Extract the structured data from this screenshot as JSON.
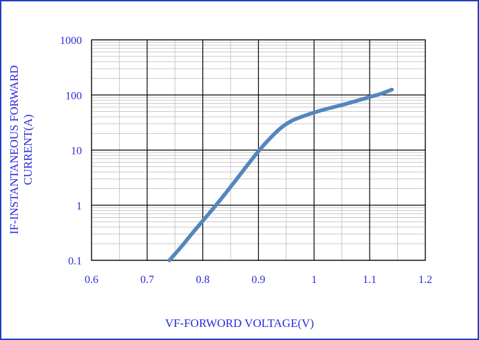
{
  "chart_data": {
    "type": "line",
    "title": "",
    "xlabel": "VF-FORWORD VOLTAGE(V)",
    "ylabel_lines": [
      "IF-INSTANTANEOUS FORWARD",
      "CURRENT(A)"
    ],
    "xlim": [
      0.6,
      1.2
    ],
    "ylim": [
      0.1,
      1000
    ],
    "y_scale": "log",
    "grid": true,
    "legend": "none",
    "x_ticks": [
      "0.6",
      "0.7",
      "0.8",
      "0.9",
      "1",
      "1.1",
      "1.2"
    ],
    "y_ticks": [
      "0.1",
      "1",
      "10",
      "100",
      "1000"
    ],
    "series": [
      {
        "color": "#5585bd",
        "x": [
          0.74,
          0.76,
          0.78,
          0.8,
          0.82,
          0.84,
          0.86,
          0.88,
          0.9,
          0.92,
          0.94,
          0.96,
          0.98,
          1.0,
          1.02,
          1.04,
          1.06,
          1.08,
          1.1,
          1.12,
          1.14
        ],
        "y": [
          0.1,
          0.17,
          0.3,
          0.52,
          0.9,
          1.6,
          2.9,
          5.3,
          9.5,
          16,
          25,
          34,
          41,
          48,
          55,
          62,
          70,
          80,
          92,
          105,
          125
        ]
      }
    ]
  },
  "colors": {
    "frame": "#1f3fbf",
    "text": "#2a2ad8",
    "line": "#5585bd",
    "major_grid": "#000000",
    "minor_grid": "#c8c8c8"
  }
}
